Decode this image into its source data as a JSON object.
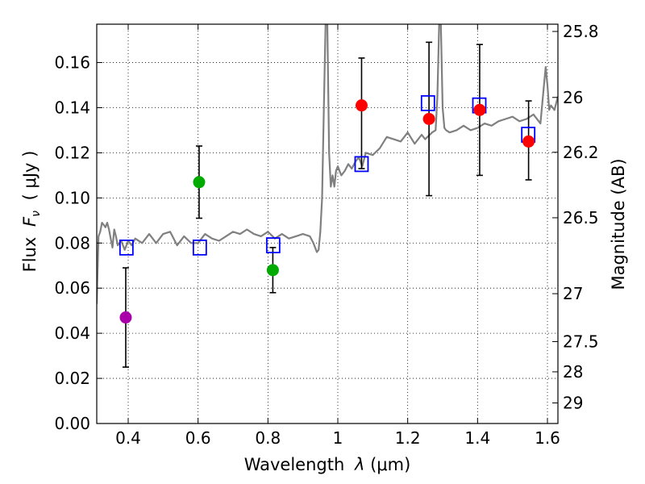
{
  "chart_data": {
    "type": "scatter",
    "title": "",
    "xlabel_prefix": "Wavelength",
    "xlabel_symbol": "λ",
    "xlabel_unit": "(μm)",
    "ylabel_prefix": "Flux",
    "ylabel_symbol": "F",
    "ylabel_subscript": "ν",
    "ylabel_unit": "( μJy )",
    "y2label": "Magnitude (AB)",
    "xlim": [
      0.31,
      1.63
    ],
    "ylim": [
      0.0,
      0.177
    ],
    "grid": true,
    "x_ticks": [
      0.4,
      0.6,
      0.8,
      1.0,
      1.2,
      1.4,
      1.6
    ],
    "x_tick_labels": [
      "0.4",
      "0.6",
      "0.8",
      "1",
      "1.2",
      "1.4",
      "1.6"
    ],
    "y_ticks": [
      0.0,
      0.02,
      0.04,
      0.06,
      0.08,
      0.1,
      0.12,
      0.14,
      0.16
    ],
    "y_tick_labels": [
      "0.00",
      "0.02",
      "0.04",
      "0.06",
      "0.08",
      "0.10",
      "0.12",
      "0.14",
      "0.16"
    ],
    "y2_ticks": [
      {
        "mag": 25.8,
        "label": "25.8"
      },
      {
        "mag": 26,
        "label": "26"
      },
      {
        "mag": 26.2,
        "label": "26.2"
      },
      {
        "mag": 26.5,
        "label": "26.5"
      },
      {
        "mag": 27,
        "label": "27"
      },
      {
        "mag": 27.5,
        "label": "27.5"
      },
      {
        "mag": 28,
        "label": "28"
      },
      {
        "mag": 29,
        "label": "29"
      }
    ],
    "colors": {
      "spectrum": "#808080",
      "model": "#0000ff",
      "purple": "#aa00aa",
      "green": "#00aa00",
      "red": "#ff0000",
      "error": "#000000"
    },
    "series": [
      {
        "name": "model spectrum",
        "kind": "line",
        "x": [
          0.31,
          0.315,
          0.32,
          0.325,
          0.33,
          0.335,
          0.34,
          0.345,
          0.35,
          0.355,
          0.36,
          0.365,
          0.37,
          0.38,
          0.39,
          0.4,
          0.41,
          0.42,
          0.44,
          0.46,
          0.48,
          0.5,
          0.52,
          0.54,
          0.56,
          0.58,
          0.6,
          0.62,
          0.64,
          0.66,
          0.68,
          0.7,
          0.72,
          0.74,
          0.76,
          0.78,
          0.8,
          0.82,
          0.84,
          0.86,
          0.88,
          0.9,
          0.92,
          0.93,
          0.94,
          0.945,
          0.95,
          0.955,
          0.96,
          0.965,
          0.97,
          0.975,
          0.98,
          0.985,
          0.99,
          0.995,
          1.0,
          1.01,
          1.02,
          1.03,
          1.04,
          1.05,
          1.06,
          1.07,
          1.08,
          1.1,
          1.12,
          1.14,
          1.16,
          1.18,
          1.2,
          1.22,
          1.24,
          1.25,
          1.27,
          1.28,
          1.285,
          1.29,
          1.295,
          1.3,
          1.305,
          1.31,
          1.32,
          1.34,
          1.36,
          1.38,
          1.4,
          1.42,
          1.44,
          1.46,
          1.48,
          1.5,
          1.52,
          1.54,
          1.56,
          1.58,
          1.59,
          1.595,
          1.6,
          1.605,
          1.61,
          1.62,
          1.63
        ],
        "y": [
          0.053,
          0.083,
          0.085,
          0.089,
          0.088,
          0.087,
          0.089,
          0.086,
          0.082,
          0.078,
          0.086,
          0.083,
          0.079,
          0.081,
          0.077,
          0.081,
          0.079,
          0.082,
          0.08,
          0.084,
          0.08,
          0.084,
          0.085,
          0.079,
          0.083,
          0.08,
          0.08,
          0.084,
          0.082,
          0.081,
          0.083,
          0.085,
          0.084,
          0.086,
          0.084,
          0.083,
          0.085,
          0.082,
          0.084,
          0.082,
          0.083,
          0.084,
          0.083,
          0.08,
          0.076,
          0.077,
          0.085,
          0.1,
          0.14,
          0.177,
          0.177,
          0.12,
          0.105,
          0.11,
          0.105,
          0.112,
          0.114,
          0.11,
          0.112,
          0.115,
          0.113,
          0.116,
          0.118,
          0.114,
          0.12,
          0.119,
          0.122,
          0.127,
          0.126,
          0.125,
          0.129,
          0.124,
          0.128,
          0.126,
          0.129,
          0.13,
          0.145,
          0.177,
          0.177,
          0.14,
          0.131,
          0.13,
          0.129,
          0.13,
          0.132,
          0.13,
          0.131,
          0.133,
          0.132,
          0.134,
          0.135,
          0.136,
          0.134,
          0.135,
          0.137,
          0.133,
          0.15,
          0.158,
          0.15,
          0.139,
          0.141,
          0.139,
          0.145
        ]
      },
      {
        "name": "model photometry",
        "kind": "open-square",
        "x": [
          0.395,
          0.605,
          0.815,
          1.068,
          1.258,
          1.405,
          1.545
        ],
        "y": [
          0.078,
          0.078,
          0.079,
          0.115,
          0.142,
          0.141,
          0.128
        ]
      },
      {
        "name": "purple observation",
        "kind": "filled-circle",
        "color_key": "purple",
        "x": [
          0.393
        ],
        "y": [
          0.047
        ],
        "yerr_low": [
          0.025
        ],
        "yerr_high": [
          0.069
        ]
      },
      {
        "name": "green observations",
        "kind": "filled-circle",
        "color_key": "green",
        "x": [
          0.603,
          0.814
        ],
        "y": [
          0.107,
          0.068
        ],
        "yerr_low": [
          0.091,
          0.058
        ],
        "yerr_high": [
          0.123,
          0.078
        ]
      },
      {
        "name": "red observations",
        "kind": "filled-circle",
        "color_key": "red",
        "x": [
          1.068,
          1.261,
          1.406,
          1.546
        ],
        "y": [
          0.141,
          0.135,
          0.139,
          0.125
        ],
        "yerr_low": [
          0.113,
          0.101,
          0.11,
          0.108
        ],
        "yerr_high": [
          0.162,
          0.169,
          0.168,
          0.143
        ]
      }
    ]
  }
}
